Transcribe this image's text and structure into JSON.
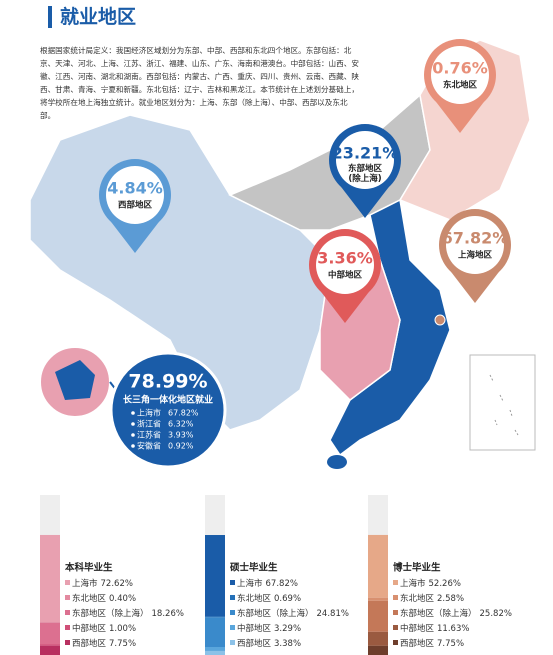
{
  "header": {
    "title": "就业地区"
  },
  "intro": "根据国家统计局定义：我国经济区域划分为东部、中部、西部和东北四个地区。东部包括：北京、天津、河北、上海、江苏、浙江、福建、山东、广东、海南和港澳台。中部包括：山西、安徽、江西、河南、湖北和湖南。西部包括：内蒙古、广西、重庆、四川、贵州、云南、西藏、陕西、甘肃、青海、宁夏和新疆。东北包括：辽宁、吉林和黑龙江。本节统计在上述划分基础上，将学校所在地上海独立统计。就业地区划分为：上海、东部（除上海）、中部、西部以及东北部。",
  "map": {
    "regions": [
      {
        "name": "东北地区",
        "value": 0.76,
        "value_label": "0.76%",
        "color": "#e8907a"
      },
      {
        "name": "东部地区\n(除上海)",
        "value": 23.21,
        "value_label": "23.21%",
        "color": "#1a5ca8"
      },
      {
        "name": "西部地区",
        "value": 4.84,
        "value_label": "4.84%",
        "color": "#5b9bd5"
      },
      {
        "name": "中部地区",
        "value": 3.36,
        "value_label": "3.36%",
        "color": "#e05a5a"
      },
      {
        "name": "上海地区",
        "value": 67.82,
        "value_label": "67.82%",
        "color": "#c98a6e"
      }
    ]
  },
  "yangtze": {
    "value": 78.99,
    "value_label": "78.99%",
    "caption": "长三角一体化地区就业",
    "items": [
      {
        "name": "上海市",
        "value": 67.82,
        "value_label": "67.82%"
      },
      {
        "name": "浙江省",
        "value": 6.32,
        "value_label": "6.32%"
      },
      {
        "name": "江苏省",
        "value": 3.93,
        "value_label": "3.93%"
      },
      {
        "name": "安徽省",
        "value": 0.92,
        "value_label": "0.92%"
      }
    ]
  },
  "chart_data": [
    {
      "type": "bar",
      "title": "本科毕业生",
      "series": [
        {
          "name": "上海市",
          "color": "#e8a0b0",
          "values": [
            72.62
          ],
          "value_labels": [
            "72.62%"
          ]
        },
        {
          "name": "东北地区",
          "color": "#e38aa0",
          "values": [
            0.4
          ],
          "value_labels": [
            "0.40%"
          ]
        },
        {
          "name": "东部地区（除上海）",
          "color": "#dc7090",
          "values": [
            18.26
          ],
          "value_labels": [
            "18.26%"
          ]
        },
        {
          "name": "中部地区",
          "color": "#d05078",
          "values": [
            1.0
          ],
          "value_labels": [
            "1.00%"
          ]
        },
        {
          "name": "西部地区",
          "color": "#b83060",
          "values": [
            7.75
          ],
          "value_labels": [
            "7.75%"
          ]
        }
      ]
    },
    {
      "type": "bar",
      "title": "硕士毕业生",
      "series": [
        {
          "name": "上海市",
          "color": "#1a5ca8",
          "values": [
            67.82
          ],
          "value_labels": [
            "67.82%"
          ]
        },
        {
          "name": "东北地区",
          "color": "#2470b8",
          "values": [
            0.69
          ],
          "value_labels": [
            "0.69%"
          ]
        },
        {
          "name": "东部地区（除上海）",
          "color": "#3a8acb",
          "values": [
            24.81
          ],
          "value_labels": [
            "24.81%"
          ]
        },
        {
          "name": "中部地区",
          "color": "#5aa6dc",
          "values": [
            3.29
          ],
          "value_labels": [
            "3.29%"
          ]
        },
        {
          "name": "西部地区",
          "color": "#8cc2e8",
          "values": [
            3.38
          ],
          "value_labels": [
            "3.38%"
          ]
        }
      ]
    },
    {
      "type": "bar",
      "title": "博士毕业生",
      "series": [
        {
          "name": "上海市",
          "color": "#e6a888",
          "values": [
            52.26
          ],
          "value_labels": [
            "52.26%"
          ]
        },
        {
          "name": "东北地区",
          "color": "#d89070",
          "values": [
            2.58
          ],
          "value_labels": [
            "2.58%"
          ]
        },
        {
          "name": "东部地区（除上海）",
          "color": "#c47858",
          "values": [
            25.82
          ],
          "value_labels": [
            "25.82%"
          ]
        },
        {
          "name": "中部地区",
          "color": "#9a5a40",
          "values": [
            11.63
          ],
          "value_labels": [
            "11.63%"
          ]
        },
        {
          "name": "西部地区",
          "color": "#6e3e2c",
          "values": [
            7.75
          ],
          "value_labels": [
            "7.75%"
          ]
        }
      ]
    }
  ]
}
